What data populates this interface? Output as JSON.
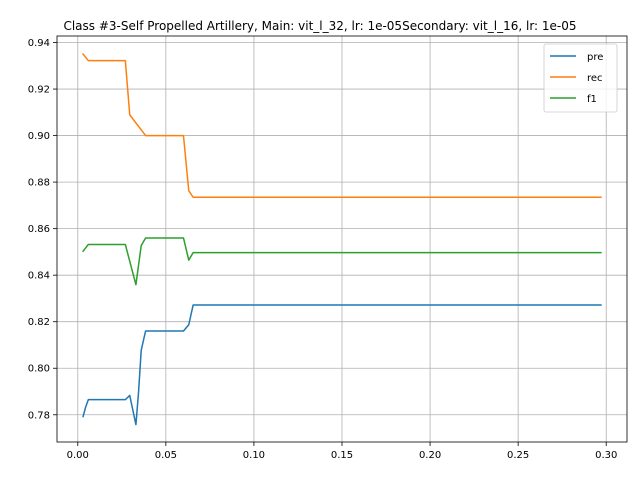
{
  "chart_data": {
    "type": "line",
    "title": "Class #3-Self Propelled Artillery, Main: vit_l_32, lr: 1e-05Secondary: vit_l_16, lr: 1e-05",
    "xlabel": "",
    "ylabel": "",
    "xlim": [
      -0.0118,
      0.3118
    ],
    "ylim": [
      0.7683,
      0.9428
    ],
    "xticks": [
      0.0,
      0.05,
      0.1,
      0.15,
      0.2,
      0.25,
      0.3
    ],
    "xtick_labels": [
      "0.00",
      "0.05",
      "0.10",
      "0.15",
      "0.20",
      "0.25",
      "0.30"
    ],
    "yticks": [
      0.78,
      0.8,
      0.82,
      0.84,
      0.86,
      0.88,
      0.9,
      0.92,
      0.94
    ],
    "ytick_labels": [
      "0.78",
      "0.80",
      "0.82",
      "0.84",
      "0.86",
      "0.88",
      "0.90",
      "0.92",
      "0.94"
    ],
    "grid": true,
    "legend_position": "top-right",
    "series": [
      {
        "name": "pre",
        "color": "#1f77b4",
        "points": [
          [
            0.003,
            0.7792
          ],
          [
            0.0045,
            0.7834
          ],
          [
            0.006,
            0.7865
          ],
          [
            0.027,
            0.7865
          ],
          [
            0.0295,
            0.7883
          ],
          [
            0.033,
            0.7758
          ],
          [
            0.0345,
            0.7897
          ],
          [
            0.036,
            0.8077
          ],
          [
            0.0385,
            0.816
          ],
          [
            0.06,
            0.816
          ],
          [
            0.063,
            0.8187
          ],
          [
            0.0655,
            0.8272
          ],
          [
            0.297,
            0.8272
          ]
        ]
      },
      {
        "name": "rec",
        "color": "#ff7f0e",
        "points": [
          [
            0.003,
            0.935
          ],
          [
            0.006,
            0.9322
          ],
          [
            0.027,
            0.9322
          ],
          [
            0.0295,
            0.9089
          ],
          [
            0.0385,
            0.9
          ],
          [
            0.06,
            0.9
          ],
          [
            0.063,
            0.8763
          ],
          [
            0.0655,
            0.8735
          ],
          [
            0.297,
            0.8735
          ]
        ]
      },
      {
        "name": "f1",
        "color": "#2ca02c",
        "points": [
          [
            0.003,
            0.8503
          ],
          [
            0.006,
            0.8532
          ],
          [
            0.027,
            0.8532
          ],
          [
            0.033,
            0.8359
          ],
          [
            0.036,
            0.8527
          ],
          [
            0.0385,
            0.856
          ],
          [
            0.06,
            0.856
          ],
          [
            0.063,
            0.8465
          ],
          [
            0.0655,
            0.8497
          ],
          [
            0.297,
            0.8497
          ]
        ]
      }
    ]
  }
}
